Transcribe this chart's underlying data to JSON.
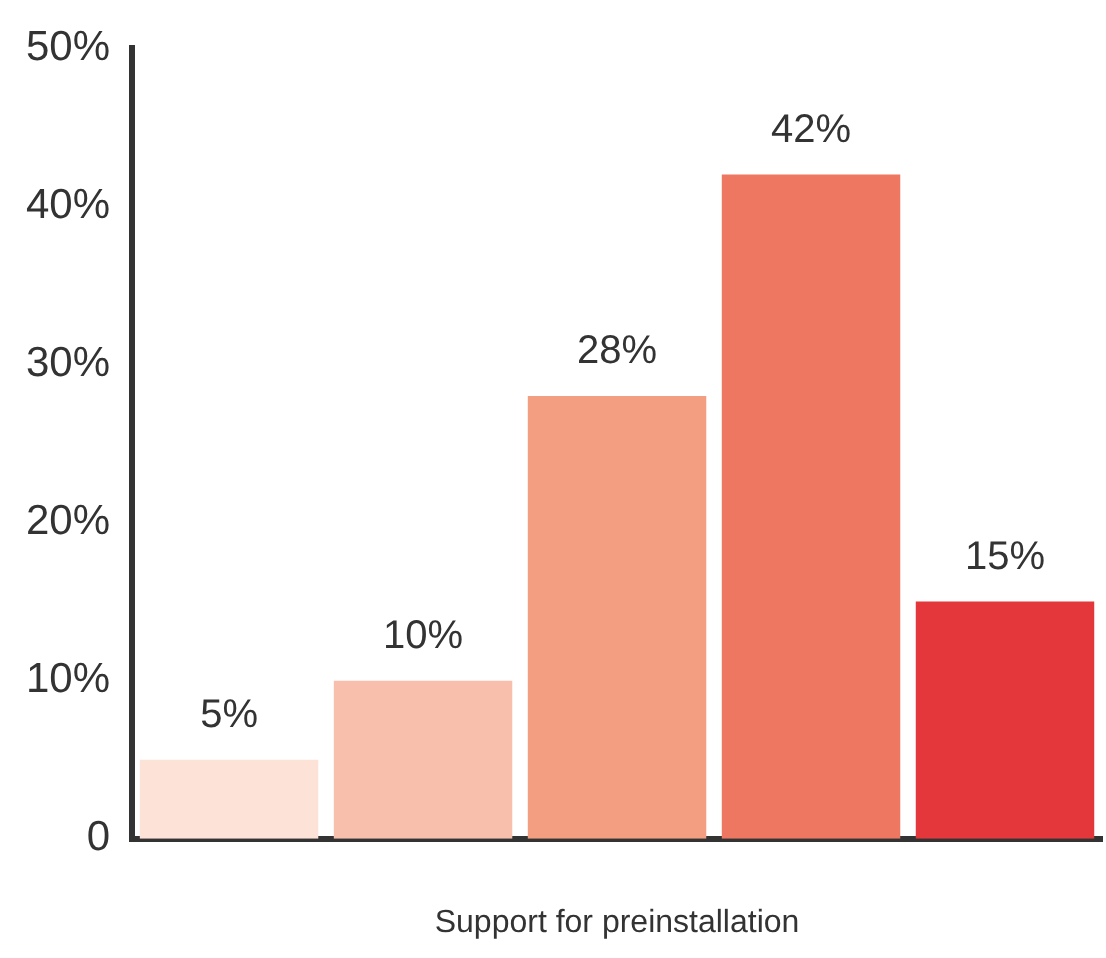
{
  "chart_data": {
    "type": "bar",
    "xlabel": "Support for preinstallation",
    "categories": [
      null,
      null,
      null,
      null,
      null
    ],
    "values": [
      5,
      10,
      28,
      42,
      15
    ],
    "colors": [
      "#fde2d7",
      "#f9bfad",
      "#f49e81",
      "#ee7761",
      "#e4373b"
    ],
    "value_labels": [
      "5%",
      "10%",
      "28%",
      "42%",
      "15%"
    ],
    "ylim": [
      0,
      50
    ],
    "yticks": [
      0,
      {
        "value": 10,
        "label": "10%"
      },
      {
        "value": 20,
        "label": "20%"
      },
      {
        "value": 30,
        "label": "30%"
      },
      {
        "value": 40,
        "label": "40%"
      },
      {
        "value": 50,
        "label": "50%"
      }
    ],
    "grid": false,
    "legend": false
  }
}
